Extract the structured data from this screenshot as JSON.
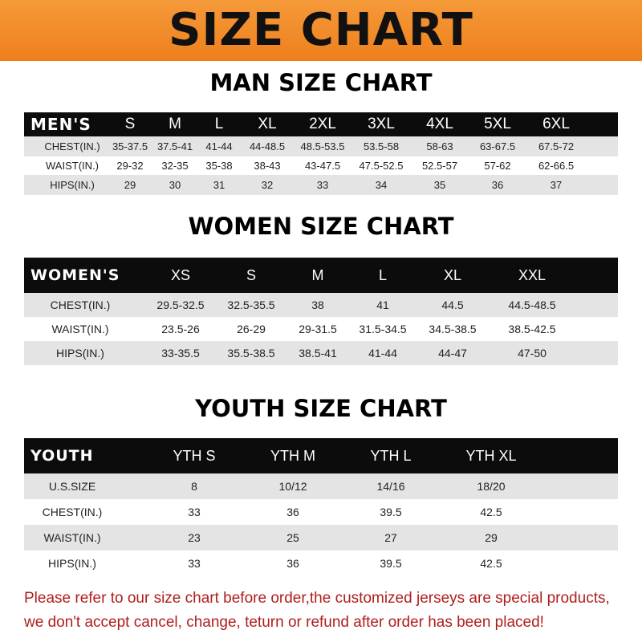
{
  "banner": {
    "title": "SIZE CHART",
    "color": "#f0881f"
  },
  "men": {
    "title": "MAN SIZE CHART",
    "header": [
      "MEN'S",
      "S",
      "M",
      "L",
      "XL",
      "2XL",
      "3XL",
      "4XL",
      "5XL",
      "6XL"
    ],
    "rows": [
      [
        "CHEST(IN.)",
        "35-37.5",
        "37.5-41",
        "41-44",
        "44-48.5",
        "48.5-53.5",
        "53.5-58",
        "58-63",
        "63-67.5",
        "67.5-72"
      ],
      [
        "WAIST(IN.)",
        "29-32",
        "32-35",
        "35-38",
        "38-43",
        "43-47.5",
        "47.5-52.5",
        "52.5-57",
        "57-62",
        "62-66.5"
      ],
      [
        "HIPS(IN.)",
        "29",
        "30",
        "31",
        "32",
        "33",
        "34",
        "35",
        "36",
        "37"
      ]
    ]
  },
  "women": {
    "title": "WOMEN SIZE CHART",
    "header": [
      "WOMEN'S",
      "XS",
      "S",
      "M",
      "L",
      "XL",
      "XXL"
    ],
    "rows": [
      [
        "CHEST(IN.)",
        "29.5-32.5",
        "32.5-35.5",
        "38",
        "41",
        "44.5",
        "44.5-48.5"
      ],
      [
        "WAIST(IN.)",
        "23.5-26",
        "26-29",
        "29-31.5",
        "31.5-34.5",
        "34.5-38.5",
        "38.5-42.5"
      ],
      [
        "HIPS(IN.)",
        "33-35.5",
        "35.5-38.5",
        "38.5-41",
        "41-44",
        "44-47",
        "47-50"
      ]
    ]
  },
  "youth": {
    "title": "YOUTH SIZE CHART",
    "header": [
      "YOUTH",
      "YTH S",
      "YTH M",
      "YTH L",
      "YTH XL"
    ],
    "rows": [
      [
        "U.S.SIZE",
        "8",
        "10/12",
        "14/16",
        "18/20"
      ],
      [
        "CHEST(IN.)",
        "33",
        "36",
        "39.5",
        "42.5"
      ],
      [
        "WAIST(IN.)",
        "23",
        "25",
        "27",
        "29"
      ],
      [
        "HIPS(IN.)",
        "33",
        "36",
        "39.5",
        "42.5"
      ]
    ]
  },
  "notice": {
    "line1": "Please refer to our size chart before order,the customized jerseys are special products,",
    "line2": "we don't accept cancel, change, teturn or refund after order has been placed!",
    "color": "#b01e1e"
  }
}
